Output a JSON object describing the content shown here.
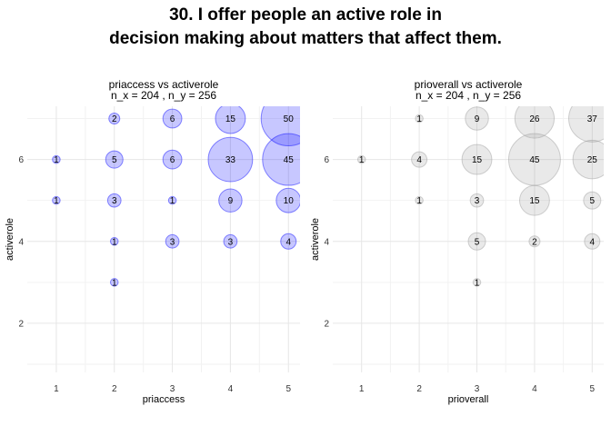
{
  "title": {
    "line1": "30. I offer people an active role in",
    "line2": "decision making about matters that affect them."
  },
  "chart_data": [
    {
      "type": "scatter",
      "subtype": "bubble",
      "title_line1": "priaccess vs activerole",
      "title_line2": "n_x = 204 , n_y = 256",
      "xlabel": "priaccess",
      "ylabel": "activerole",
      "x_ticks": [
        1,
        2,
        3,
        4,
        5
      ],
      "y_ticks": [
        2,
        4,
        6
      ],
      "xlim": [
        0.5,
        5.2
      ],
      "ylim": [
        0.8,
        7.3
      ],
      "grid": true,
      "bubble_color": "#0000ff",
      "points": [
        {
          "x": 1,
          "y": 6,
          "count": 1
        },
        {
          "x": 1,
          "y": 5,
          "count": 1
        },
        {
          "x": 2,
          "y": 7,
          "count": 2
        },
        {
          "x": 2,
          "y": 6,
          "count": 5
        },
        {
          "x": 2,
          "y": 5,
          "count": 3
        },
        {
          "x": 2,
          "y": 4,
          "count": 1
        },
        {
          "x": 2,
          "y": 3,
          "count": 1
        },
        {
          "x": 3,
          "y": 7,
          "count": 6
        },
        {
          "x": 3,
          "y": 6,
          "count": 6
        },
        {
          "x": 3,
          "y": 5,
          "count": 1
        },
        {
          "x": 3,
          "y": 4,
          "count": 3
        },
        {
          "x": 4,
          "y": 7,
          "count": 15
        },
        {
          "x": 4,
          "y": 6,
          "count": 33
        },
        {
          "x": 4,
          "y": 5,
          "count": 9
        },
        {
          "x": 4,
          "y": 4,
          "count": 3
        },
        {
          "x": 5,
          "y": 7,
          "count": 50
        },
        {
          "x": 5,
          "y": 6,
          "count": 45
        },
        {
          "x": 5,
          "y": 5,
          "count": 10
        },
        {
          "x": 5,
          "y": 4,
          "count": 4
        }
      ]
    },
    {
      "type": "scatter",
      "subtype": "bubble",
      "title_line1": "prioverall vs activerole",
      "title_line2": "n_x = 204 , n_y = 256",
      "xlabel": "prioverall",
      "ylabel": "activerole",
      "x_ticks": [
        1,
        2,
        3,
        4,
        5
      ],
      "y_ticks": [
        2,
        4,
        6
      ],
      "xlim": [
        0.5,
        5.2
      ],
      "ylim": [
        0.8,
        7.3
      ],
      "grid": true,
      "bubble_color": "#999999",
      "points": [
        {
          "x": 1,
          "y": 6,
          "count": 1
        },
        {
          "x": 2,
          "y": 7,
          "count": 1
        },
        {
          "x": 2,
          "y": 6,
          "count": 4
        },
        {
          "x": 2,
          "y": 5,
          "count": 1
        },
        {
          "x": 3,
          "y": 7,
          "count": 9
        },
        {
          "x": 3,
          "y": 6,
          "count": 15
        },
        {
          "x": 3,
          "y": 5,
          "count": 3
        },
        {
          "x": 3,
          "y": 4,
          "count": 5
        },
        {
          "x": 3,
          "y": 3,
          "count": 1
        },
        {
          "x": 4,
          "y": 7,
          "count": 26
        },
        {
          "x": 4,
          "y": 6,
          "count": 45
        },
        {
          "x": 4,
          "y": 5,
          "count": 15
        },
        {
          "x": 4,
          "y": 4,
          "count": 2
        },
        {
          "x": 5,
          "y": 7,
          "count": 37
        },
        {
          "x": 5,
          "y": 6,
          "count": 25
        },
        {
          "x": 5,
          "y": 5,
          "count": 5
        },
        {
          "x": 5,
          "y": 4,
          "count": 4
        }
      ]
    }
  ]
}
